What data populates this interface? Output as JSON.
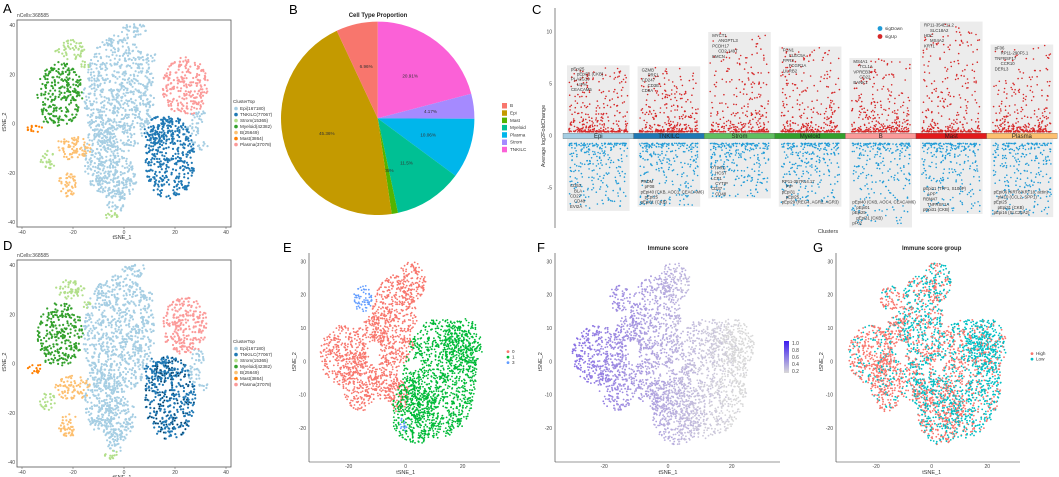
{
  "chart_data": [
    {
      "panel": "A",
      "type": "scatter",
      "subtitle": "nCells:368585",
      "xlabel": "tSNE_1",
      "ylabel": "tSNE_2",
      "xlim": [
        -40,
        40
      ],
      "ylim": [
        -40,
        40
      ],
      "xticks": [
        "-40",
        "-20",
        "0",
        "20",
        "40"
      ],
      "yticks": [
        "-40",
        "-20",
        "0",
        "20",
        "40"
      ],
      "legend_title": "ClusterTop",
      "legend_position": "right",
      "categories": [
        "Epi(167180)",
        "TNKILC(77067)",
        "Strom(15365)",
        "Myeloid(42382)",
        "B(25649)",
        "Mast(3864)",
        "Plasma(37078)"
      ],
      "colors": [
        "#a6cee3",
        "#1f78b4",
        "#b2df8a",
        "#33a02c",
        "#fdbf6f",
        "#ff7f00",
        "#fb9a99"
      ]
    },
    {
      "panel": "B",
      "type": "pie",
      "title": "Cell Type Proportion",
      "legend_position": "right",
      "categories": [
        "B",
        "Epi",
        "Mast",
        "Myeloid",
        "Plasma",
        "Strom",
        "TNKILC"
      ],
      "values": [
        6.96,
        45.36,
        1.05,
        11.5,
        10.06,
        4.17,
        20.91
      ],
      "labels": [
        "6.96%",
        "45.36%",
        "1.05%",
        "11.5%",
        "10.06%",
        "4.17%",
        "20.91%"
      ],
      "colors": [
        "#f8766d",
        "#c49a00",
        "#53b400",
        "#00c094",
        "#00b6eb",
        "#a58aff",
        "#fb61d7"
      ]
    },
    {
      "panel": "C",
      "type": "scatter",
      "xlabel": "Clusters",
      "ylabel": "Average log2FoldChange",
      "ylim": [
        -9,
        12
      ],
      "yticks": [
        "-5",
        "0",
        "5",
        "10"
      ],
      "legend": [
        "sigDown",
        "sigUp"
      ],
      "legend_colors": [
        "#1f9bd7",
        "#d62728"
      ],
      "legend_position": "top-right",
      "clusters": [
        {
          "name": "Epi",
          "color": "#a6cee3",
          "max": 6.8,
          "min": -7.2,
          "up_genes": [
            "pEpi25",
            "pEpi31 (CKB)",
            "PLA2G10",
            "LIPH",
            "CEACAM5"
          ],
          "down_genes": [
            "CD53",
            "BLA",
            "CD27",
            "CD48",
            "EVI2A"
          ]
        },
        {
          "name": "TNKILC",
          "color": "#1f78b4",
          "max": 6.7,
          "min": -6.8,
          "up_genes": [
            "GZMB",
            "PRF1",
            "CD247",
            "CD3E",
            "CD8A"
          ],
          "down_genes": [
            "PRDM",
            "pF08",
            "pEpi40 (CKB, AOC1, CEACAM6)",
            "pEpi25",
            "pEpi31 (CKB)"
          ]
        },
        {
          "name": "Strom",
          "color": "#5fbf5f",
          "max": 10,
          "min": -6,
          "up_genes": [
            "MYCT1",
            "ANGPTL3",
            "PCDH17",
            "CD2 149T",
            "EMCN"
          ],
          "down_genes": [
            "PTPRC",
            "HCST",
            "LCP1",
            "CYTIP",
            "CD37",
            "CD48"
          ]
        },
        {
          "name": "Myeloid",
          "color": "#33a02c",
          "max": 8.6,
          "min": -6.8,
          "up_genes": [
            "FCN1",
            "CLEC5A",
            "FPR3",
            "FCGR1A",
            "LILRB2"
          ],
          "down_genes": [
            "RP11-357R14.17",
            "PIP",
            "pEpi31",
            "pEpi25",
            "pEpi29 (REG4, AGR2, AGR3)"
          ]
        },
        {
          "name": "B",
          "color": "#fb9a99",
          "max": 7.5,
          "min": -8.8,
          "up_genes": [
            "MS4A1",
            "TCL1A",
            "VPREB3",
            "CD22",
            "BANK1"
          ],
          "down_genes": [
            "pEpi40 (CKB, AOC4, CEACAM6)",
            "pEpi01",
            "pEpi25",
            "pEpi31 (CKB)",
            "pF02"
          ]
        },
        {
          "name": "Mast",
          "color": "#e31a1c",
          "max": 11,
          "min": -7.5,
          "up_genes": [
            "RP11-354E11.2",
            "SLC18A2",
            "HDC",
            "MS4A2",
            "KRT1"
          ],
          "down_genes": [
            "pEpi21 (TFF1, S100P)",
            "APP",
            "RBM47",
            "TNFRSF1A",
            "pEpi31 (CKB)"
          ]
        },
        {
          "name": "Plasma",
          "color": "#fdbf6f",
          "max": 8.8,
          "min": -7.8,
          "up_genes": [
            "pF06",
            "RP11-290F5.1",
            "TNFRSF17",
            "CCR10",
            "DERL3"
          ],
          "down_genes": [
            "pEpi06 (KRT8/KRT18, actin)",
            "pM10 (CCL2, SPP1)",
            "pEpi25",
            "pEpi31 (CKB)",
            "pEpi16 (SLC26A2)"
          ]
        }
      ]
    },
    {
      "panel": "D",
      "type": "scatter",
      "subtitle": "nCells:368585",
      "xlabel": "tSNE_1",
      "ylabel": "tSNE_2",
      "xlim": [
        -40,
        40
      ],
      "ylim": [
        -40,
        40
      ],
      "xticks": [
        "-40",
        "-20",
        "0",
        "20",
        "40"
      ],
      "yticks": [
        "-40",
        "-20",
        "0",
        "20",
        "40"
      ],
      "legend_title": "ClusterTop",
      "legend_position": "right",
      "categories": [
        "Epi(167180)",
        "TNKILC(77067)",
        "Strom(15365)",
        "Myeloid(42382)",
        "B(25649)",
        "Mast(3864)",
        "Plasma(37078)"
      ],
      "colors": [
        "#a6cee3",
        "#1f78b4",
        "#b2df8a",
        "#33a02c",
        "#fdbf6f",
        "#ff7f00",
        "#fb9a99"
      ]
    },
    {
      "panel": "E",
      "type": "scatter",
      "xlabel": "tSNE_1",
      "ylabel": "tSNE_2",
      "xticks": [
        "-20",
        "0",
        "20"
      ],
      "yticks": [
        "-20",
        "-10",
        "0",
        "10",
        "20",
        "30"
      ],
      "legend_position": "right",
      "categories": [
        "0",
        "1",
        "3"
      ],
      "colors": [
        "#f8766d",
        "#00ba38",
        "#619cff"
      ]
    },
    {
      "panel": "F",
      "type": "scatter",
      "title": "Immune score",
      "xlabel": "tSNE_1",
      "ylabel": "tSNE_2",
      "xticks": [
        "-20",
        "0",
        "20"
      ],
      "yticks": [
        "-20",
        "-10",
        "0",
        "10",
        "20",
        "30"
      ],
      "colorbar_ticks": [
        "1.0",
        "0.8",
        "0.6",
        "0.4",
        "0.2"
      ],
      "color_range": [
        0.2,
        1.0
      ],
      "colors": [
        "#d9d9d9",
        "#3b1cf0"
      ],
      "legend_position": "right"
    },
    {
      "panel": "G",
      "type": "scatter",
      "title": "Immune score group",
      "xlabel": "tSNE_1",
      "ylabel": "tSNE_2",
      "xticks": [
        "-20",
        "0",
        "20"
      ],
      "yticks": [
        "-20",
        "-10",
        "0",
        "10",
        "20",
        "30"
      ],
      "legend_position": "right",
      "categories": [
        "High",
        "Low"
      ],
      "colors": [
        "#f8766d",
        "#00bfc4"
      ]
    }
  ],
  "panel_labels": [
    "A",
    "B",
    "C",
    "D",
    "E",
    "F",
    "G"
  ]
}
